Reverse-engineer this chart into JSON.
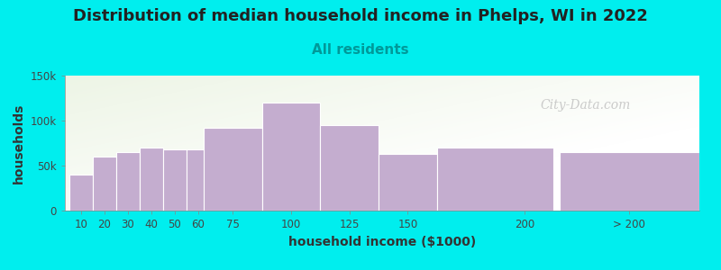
{
  "title": "Distribution of median household income in Phelps, WI in 2022",
  "subtitle": "All residents",
  "xlabel": "household income ($1000)",
  "ylabel": "households",
  "background_color": "#00EEEE",
  "bar_color": "#C4ADCF",
  "bar_edge_color": "#FFFFFF",
  "values": [
    40000,
    60000,
    65000,
    70000,
    68000,
    68000,
    92000,
    120000,
    95000,
    63000,
    70000,
    65000
  ],
  "bar_lefts": [
    5,
    15,
    25,
    35,
    45,
    55,
    62.5,
    87.5,
    112.5,
    137.5,
    162.5,
    215
  ],
  "bar_widths": [
    10,
    10,
    10,
    10,
    10,
    10,
    25,
    25,
    25,
    25,
    50,
    60
  ],
  "xtick_positions": [
    10,
    20,
    30,
    40,
    50,
    60,
    75,
    100,
    125,
    150,
    200,
    245
  ],
  "xtick_labels": [
    "10",
    "20",
    "30",
    "40",
    "50",
    "60",
    "75",
    "100",
    "125",
    "150",
    "200",
    "> 200"
  ],
  "ylim": [
    0,
    150000
  ],
  "ytick_positions": [
    0,
    50000,
    100000,
    150000
  ],
  "ytick_labels": [
    "0",
    "50k",
    "100k",
    "150k"
  ],
  "xlim": [
    3,
    275
  ],
  "plot_bg_left_color": "#E5F0DC",
  "plot_bg_right_color": "#F5F5F8",
  "watermark_text": "City-Data.com",
  "title_fontsize": 13,
  "subtitle_fontsize": 11,
  "subtitle_color": "#009999",
  "axis_label_fontsize": 10,
  "tick_fontsize": 8.5,
  "title_color": "#222222"
}
